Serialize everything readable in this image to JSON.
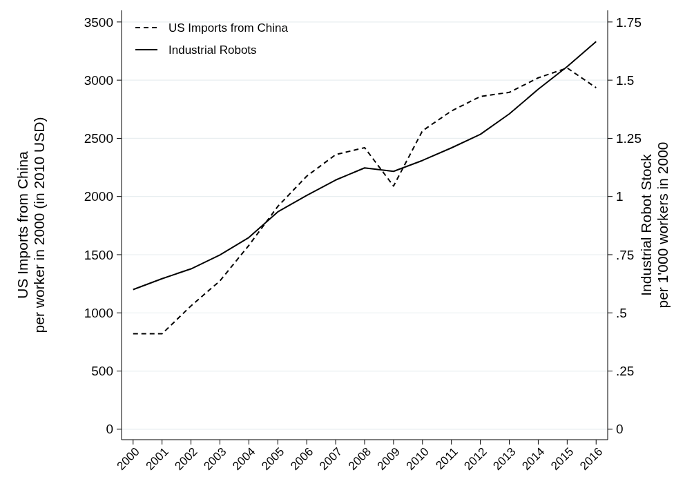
{
  "chart_data": {
    "type": "line",
    "ylabel": "US Imports from China\nper worker in 2000 (in 2010 USD)",
    "y2label": "Industrial Robot Stock\nper 1'000 workers in 2000",
    "x": [
      2000,
      2001,
      2002,
      2003,
      2004,
      2005,
      2006,
      2007,
      2008,
      2009,
      2010,
      2011,
      2012,
      2013,
      2014,
      2015,
      2016
    ],
    "xlim": [
      1999.6,
      2016.4
    ],
    "xticks": [
      2000,
      2001,
      2002,
      2003,
      2004,
      2005,
      2006,
      2007,
      2008,
      2009,
      2010,
      2011,
      2012,
      2013,
      2014,
      2015,
      2016
    ],
    "ylim": [
      -90,
      3600
    ],
    "yticks": [
      0,
      500,
      1000,
      1500,
      2000,
      2500,
      3000,
      3500
    ],
    "y2lim": [
      -0.045,
      1.8
    ],
    "y2ticks": [
      0,
      {
        "value": 0.25,
        "label": ".25"
      },
      {
        "value": 0.5,
        "label": ".5"
      },
      {
        "value": 0.75,
        "label": ".75"
      },
      1,
      1.25,
      1.5,
      1.75
    ],
    "grid": "y",
    "legend": "top left",
    "series": [
      {
        "name": "US Imports from China",
        "color": "#000000",
        "line_style": "dashed",
        "values": [
          820,
          820,
          1060,
          1275,
          1580,
          1915,
          2175,
          2360,
          2420,
          2090,
          2565,
          2735,
          2860,
          2895,
          3020,
          3105,
          2935
        ]
      },
      {
        "name": "Industrial Robots",
        "color": "#000000",
        "line_style": "solid",
        "axis": "y2",
        "values": [
          0.6,
          0.647,
          0.689,
          0.749,
          0.824,
          0.934,
          1.005,
          1.071,
          1.123,
          1.108,
          1.155,
          1.209,
          1.267,
          1.355,
          1.461,
          1.558,
          1.666
        ]
      }
    ]
  }
}
